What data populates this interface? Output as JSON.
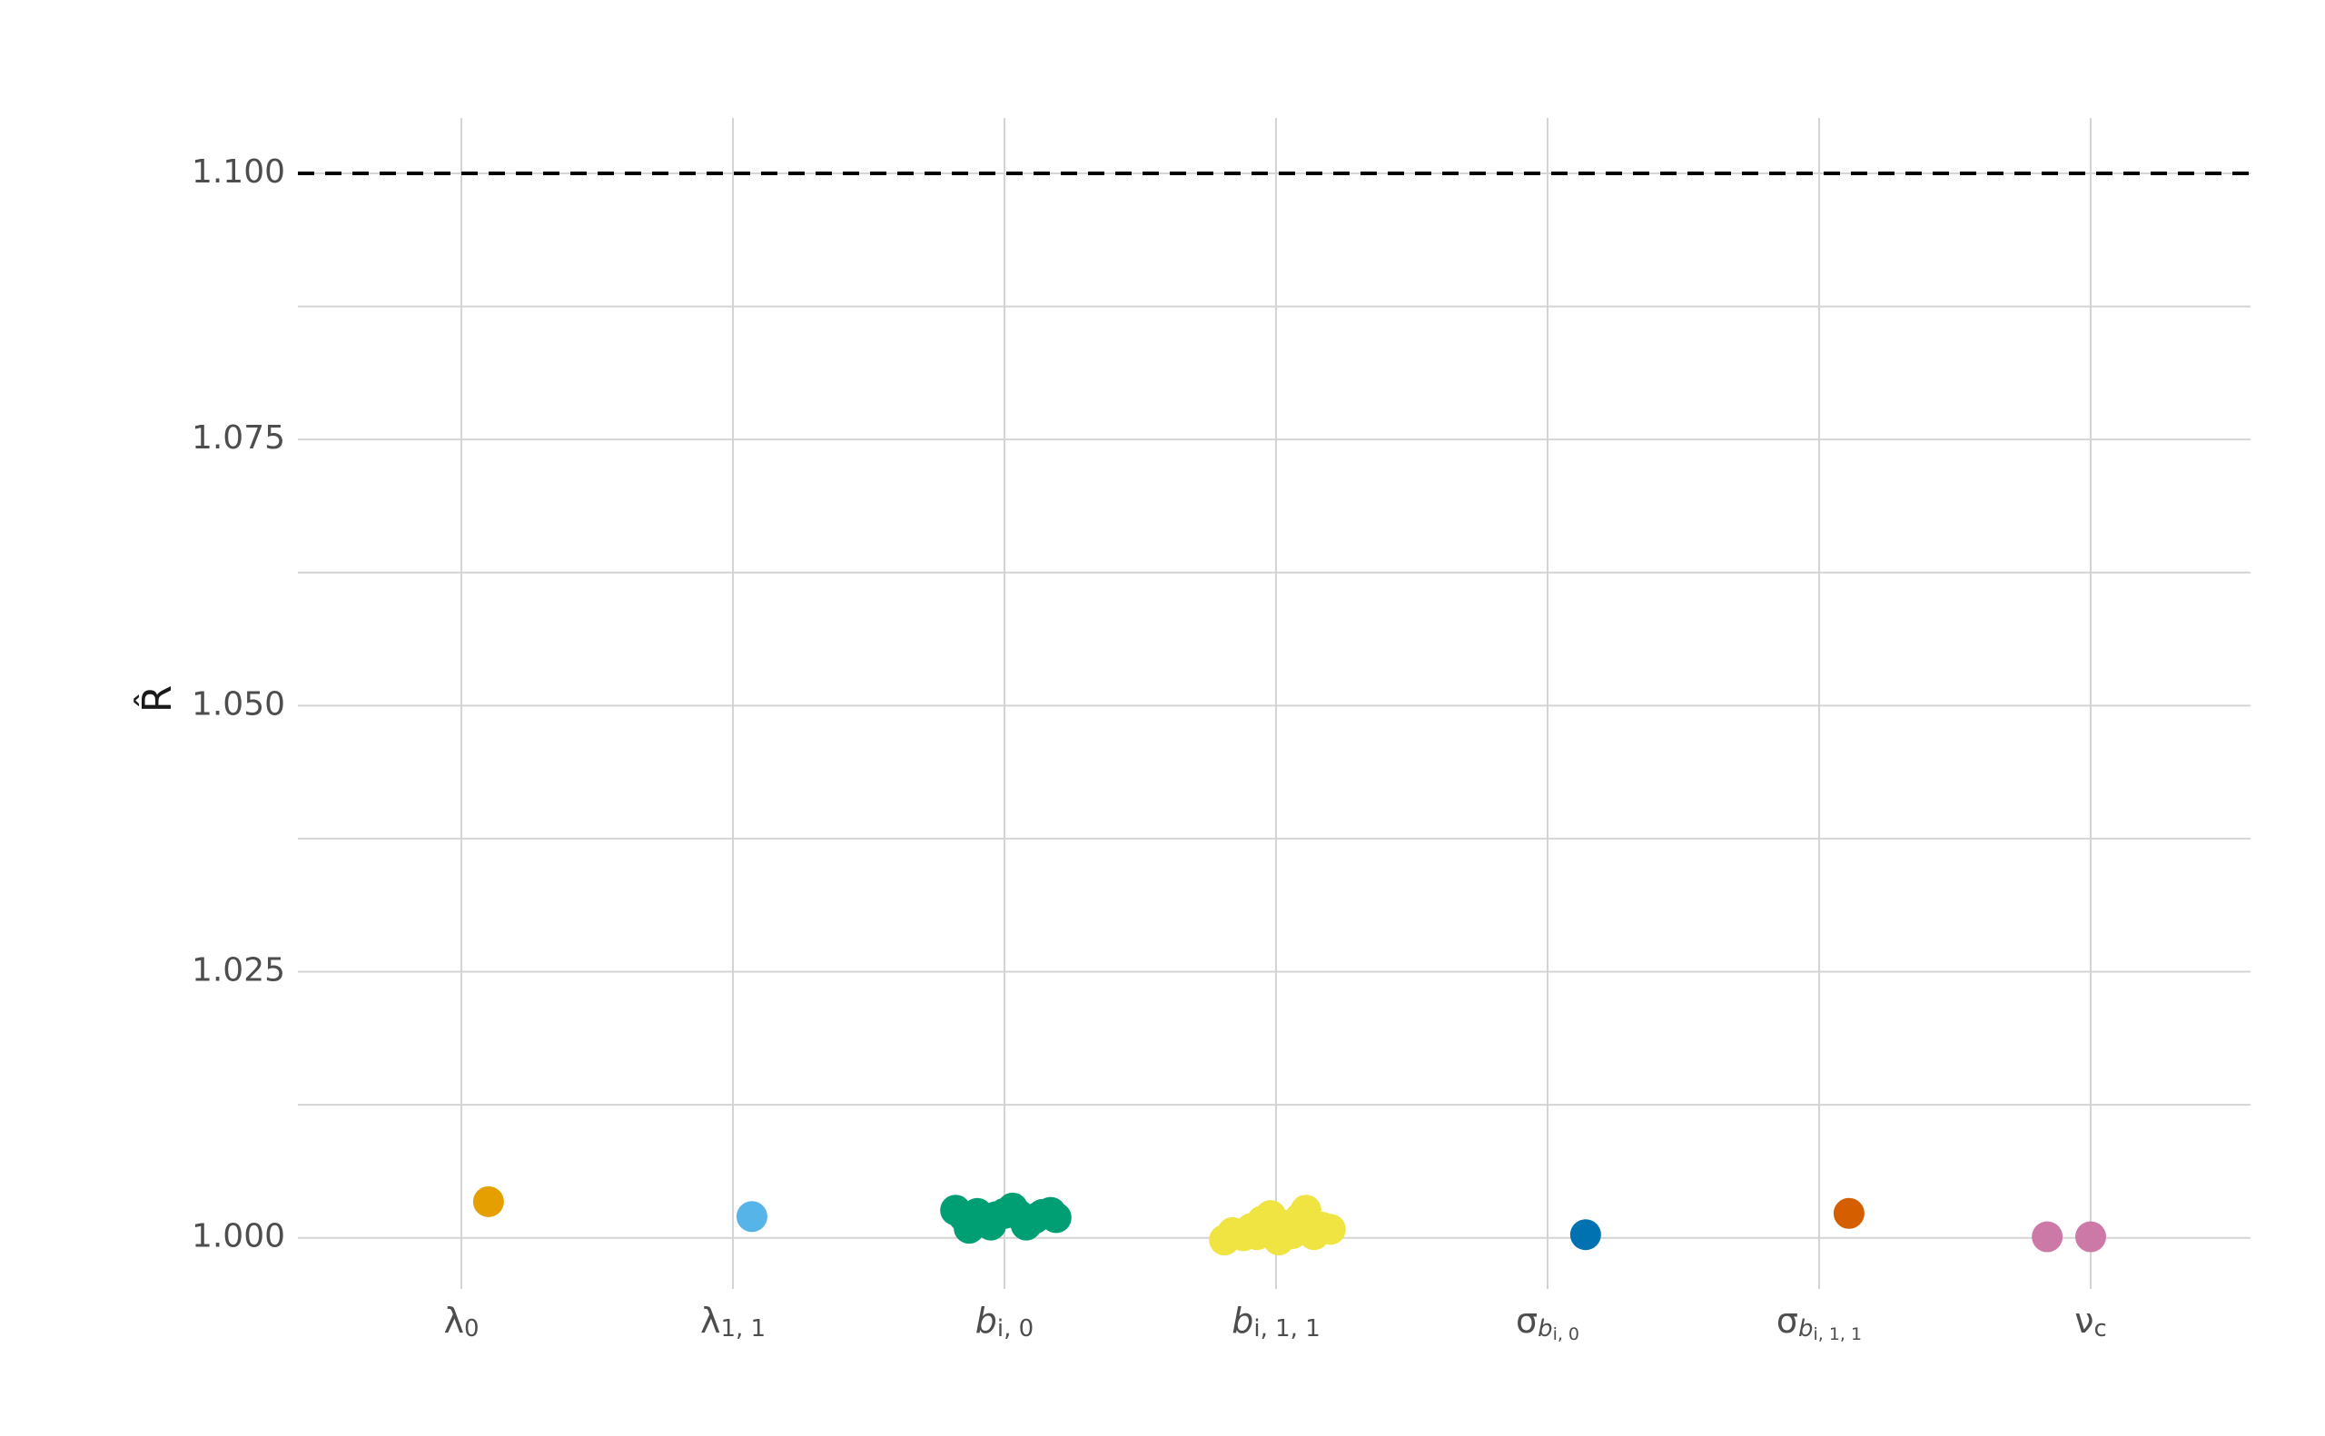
{
  "chart_data": {
    "type": "scatter",
    "ylabel": "R̂",
    "ylim": [
      0.9952,
      1.1052
    ],
    "yticks": [
      1.0,
      1.025,
      1.05,
      1.075,
      1.1
    ],
    "ytick_labels": [
      "1.000",
      "1.025",
      "1.050",
      "1.075",
      "1.100"
    ],
    "reference_line": {
      "value": 1.1,
      "style": "dashed",
      "color": "#000000"
    },
    "grid": true,
    "categories": [
      {
        "id": "lambda0",
        "base": "λ",
        "sub": "0",
        "italic": false,
        "subsub": "",
        "color": "#E69F00"
      },
      {
        "id": "lambda11",
        "base": "λ",
        "sub": "1, 1",
        "italic": false,
        "subsub": "",
        "color": "#56B4E9"
      },
      {
        "id": "bi0",
        "base": "b",
        "sub": "i, 0",
        "italic": true,
        "subsub": "",
        "color": "#009E73"
      },
      {
        "id": "bi11",
        "base": "b",
        "sub": "i, 1, 1",
        "italic": true,
        "subsub": "",
        "color": "#F0E442"
      },
      {
        "id": "sigbi0",
        "base": "σ",
        "sub": "b",
        "italic": false,
        "subsub": "i, 0",
        "color": "#0072B2"
      },
      {
        "id": "sigbi11",
        "base": "σ",
        "sub": "b",
        "italic": false,
        "subsub": "i, 1, 1",
        "color": "#D55E00"
      },
      {
        "id": "nuc",
        "base": "ν",
        "sub": "c",
        "italic": false,
        "subsub": "",
        "color": "#CC79A7"
      }
    ],
    "series": [
      {
        "category": "lambda0",
        "points": [
          [
            0.1,
            1.0034
          ]
        ]
      },
      {
        "category": "lambda11",
        "points": [
          [
            0.07,
            1.002
          ]
        ]
      },
      {
        "category": "bi0",
        "points": [
          [
            -0.18,
            1.0026
          ],
          [
            -0.15,
            1.002
          ],
          [
            -0.13,
            1.0009
          ],
          [
            -0.1,
            1.0023
          ],
          [
            -0.07,
            1.0015
          ],
          [
            -0.03,
            1.002
          ],
          [
            0.0,
            1.0023
          ],
          [
            0.03,
            1.0028
          ],
          [
            0.05,
            1.0022
          ],
          [
            0.08,
            1.0012
          ],
          [
            0.11,
            1.0018
          ],
          [
            0.14,
            1.0022
          ],
          [
            0.17,
            1.0024
          ],
          [
            0.19,
            1.0019
          ],
          [
            -0.05,
            1.0012
          ]
        ]
      },
      {
        "category": "bi11",
        "points": [
          [
            -0.19,
            0.9998
          ],
          [
            -0.16,
            1.0005
          ],
          [
            -0.12,
            1.0002
          ],
          [
            -0.09,
            1.0009
          ],
          [
            -0.05,
            1.0016
          ],
          [
            -0.02,
            1.0021
          ],
          [
            0.01,
            0.9998
          ],
          [
            0.03,
            1.0012
          ],
          [
            0.06,
            1.0004
          ],
          [
            0.09,
            1.0019
          ],
          [
            0.11,
            1.0026
          ],
          [
            0.14,
            1.0003
          ],
          [
            0.17,
            1.001
          ],
          [
            0.2,
            1.0008
          ],
          [
            -0.01,
            1.0007
          ],
          [
            0.07,
            1.0013
          ],
          [
            -0.07,
            1.0003
          ]
        ]
      },
      {
        "category": "sigbi0",
        "points": [
          [
            0.14,
            1.0003
          ]
        ]
      },
      {
        "category": "sigbi11",
        "points": [
          [
            0.11,
            1.0023
          ]
        ]
      },
      {
        "category": "nuc",
        "points": [
          [
            -0.16,
            1.0001
          ],
          [
            0.0,
            1.0001
          ]
        ]
      }
    ]
  }
}
